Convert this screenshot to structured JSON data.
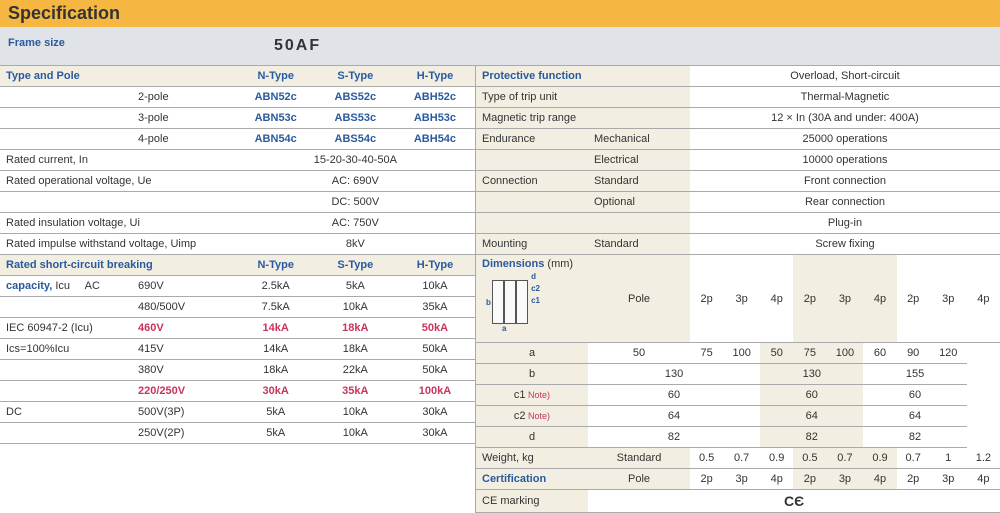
{
  "title": "Specification",
  "frame_size_label": "Frame size",
  "frame_size_val": "50AF",
  "left": {
    "type_pole_hdr": "Type and Pole",
    "types": [
      "N-Type",
      "S-Type",
      "H-Type"
    ],
    "poles": [
      {
        "p": "2-pole",
        "n": "ABN52c",
        "s": "ABS52c",
        "h": "ABH52c"
      },
      {
        "p": "3-pole",
        "n": "ABN53c",
        "s": "ABS53c",
        "h": "ABH53c"
      },
      {
        "p": "4-pole",
        "n": "ABN54c",
        "s": "ABS54c",
        "h": "ABH54c"
      }
    ],
    "rows": [
      {
        "lbl": "Rated current, In",
        "val": "15-20-30-40-50A"
      },
      {
        "lbl": "Rated operational voltage, Ue",
        "val": "AC: 690V"
      },
      {
        "lbl": "",
        "val": "DC: 500V"
      },
      {
        "lbl": "Rated insulation voltage, Ui",
        "val": "AC: 750V"
      },
      {
        "lbl": "Rated impulse withstand voltage, Uimp",
        "val": "8kV"
      }
    ],
    "short_hdr1": "Rated short-circuit breaking",
    "short_hdr2": "capacity,",
    "short_hdr2b": "Icu",
    "iec": "IEC 60947-2 (Icu)",
    "ics": "Ics=100%Icu",
    "short_rows": [
      {
        "p": "AC",
        "v": "690V",
        "n": "2.5kA",
        "s": "5kA",
        "h": "10kA",
        "red": 0
      },
      {
        "p": "",
        "v": "480/500V",
        "n": "7.5kA",
        "s": "10kA",
        "h": "35kA",
        "red": 0
      },
      {
        "p": "",
        "v": "460V",
        "n": "14kA",
        "s": "18kA",
        "h": "50kA",
        "red": 1
      },
      {
        "p": "",
        "v": "415V",
        "n": "14kA",
        "s": "18kA",
        "h": "50kA",
        "red": 0
      },
      {
        "p": "",
        "v": "380V",
        "n": "18kA",
        "s": "22kA",
        "h": "50kA",
        "red": 0
      },
      {
        "p": "",
        "v": "220/250V",
        "n": "30kA",
        "s": "35kA",
        "h": "100kA",
        "red": 1
      },
      {
        "p": "DC",
        "v": "500V(3P)",
        "n": "5kA",
        "s": "10kA",
        "h": "30kA",
        "red": 0
      },
      {
        "p": "",
        "v": "250V(2P)",
        "n": "5kA",
        "s": "10kA",
        "h": "30kA",
        "red": 0
      }
    ]
  },
  "right": {
    "rows1": [
      {
        "l": "Protective function",
        "v": "Overload, Short-circuit"
      },
      {
        "l": "Type of trip unit",
        "v": "Thermal-Magnetic"
      },
      {
        "l": "Magnetic trip range",
        "v": "12 × In (30A and under: 400A)"
      }
    ],
    "rows2": [
      {
        "l": "Endurance",
        "s": "Mechanical",
        "v": "25000 operations"
      },
      {
        "l": "",
        "s": "Electrical",
        "v": "10000 operations"
      },
      {
        "l": "Connection",
        "s": "Standard",
        "v": "Front connection"
      },
      {
        "l": "",
        "s": "Optional",
        "v": "Rear connection"
      },
      {
        "l": "",
        "s": "",
        "v": "Plug-in"
      },
      {
        "l": "Mounting",
        "s": "Standard",
        "v": "Screw fixing"
      }
    ],
    "dim_hdr": [
      "Dimensions",
      "(mm)"
    ],
    "dim_pole_hdr": "Pole",
    "dim_poles": [
      "2p",
      "3p",
      "4p",
      "2p",
      "3p",
      "4p",
      "2p",
      "3p",
      "4p"
    ],
    "dim_rows": [
      {
        "l": "a",
        "c": [
          "50",
          "75",
          "100",
          "50",
          "75",
          "100",
          "60",
          "90",
          "120"
        ],
        "beige": [
          3,
          4,
          5
        ]
      },
      {
        "l": "b",
        "c": [
          "130",
          "",
          "",
          "130",
          "",
          "",
          "155",
          "",
          ""
        ],
        "beige": [
          3,
          4,
          5
        ],
        "span": 3
      },
      {
        "l": "c1",
        "note": 1,
        "c": [
          "60",
          "",
          "",
          "60",
          "",
          "",
          "60",
          "",
          ""
        ],
        "beige": [
          3,
          4,
          5
        ],
        "span": 3
      },
      {
        "l": "c2",
        "note": 1,
        "c": [
          "64",
          "",
          "",
          "64",
          "",
          "",
          "64",
          "",
          ""
        ],
        "beige": [
          3,
          4,
          5
        ],
        "span": 3
      },
      {
        "l": "d",
        "c": [
          "82",
          "",
          "",
          "82",
          "",
          "",
          "82",
          "",
          ""
        ],
        "beige": [
          3,
          4,
          5
        ],
        "span": 3
      }
    ],
    "weight_lbl": "Weight, kg",
    "weight_std": "Standard",
    "weight_vals": [
      "0.5",
      "0.7",
      "0.9",
      "0.5",
      "0.7",
      "0.9",
      "0.7",
      "1",
      "1.2"
    ],
    "cert_hdr": "Certification",
    "cert_pole": "Pole",
    "cert_poles": [
      "2p",
      "3p",
      "4p",
      "2p",
      "3p",
      "4p",
      "2p",
      "3p",
      "4p"
    ],
    "ce_lbl": "CE marking",
    "ce_val": "ϹЄ"
  }
}
